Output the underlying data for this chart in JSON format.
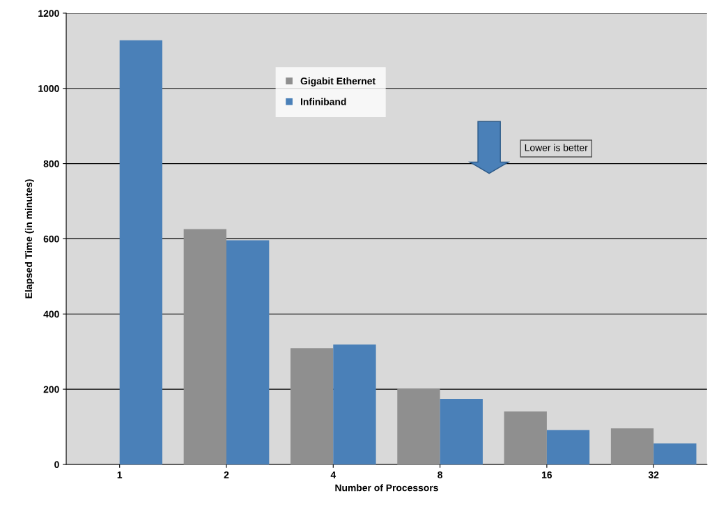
{
  "chart_data": {
    "type": "bar",
    "xlabel": "Number of Processors",
    "ylabel": "Elapsed Time (in minutes)",
    "categories": [
      "1",
      "2",
      "4",
      "8",
      "16",
      "32"
    ],
    "series": [
      {
        "name": "Gigabit Ethernet",
        "color": "#8f8f8f",
        "values": [
          null,
          626,
          309,
          202,
          141,
          96
        ]
      },
      {
        "name": "Infiniband",
        "color": "#4a80b8",
        "values": [
          1128,
          596,
          319,
          174,
          91,
          56
        ]
      }
    ],
    "ylim": [
      0,
      1200
    ],
    "yticks": [
      0,
      200,
      400,
      600,
      800,
      1000,
      1200
    ],
    "grid": "y",
    "legend": "top left",
    "annotations": [
      {
        "text": "Lower is better"
      }
    ]
  }
}
